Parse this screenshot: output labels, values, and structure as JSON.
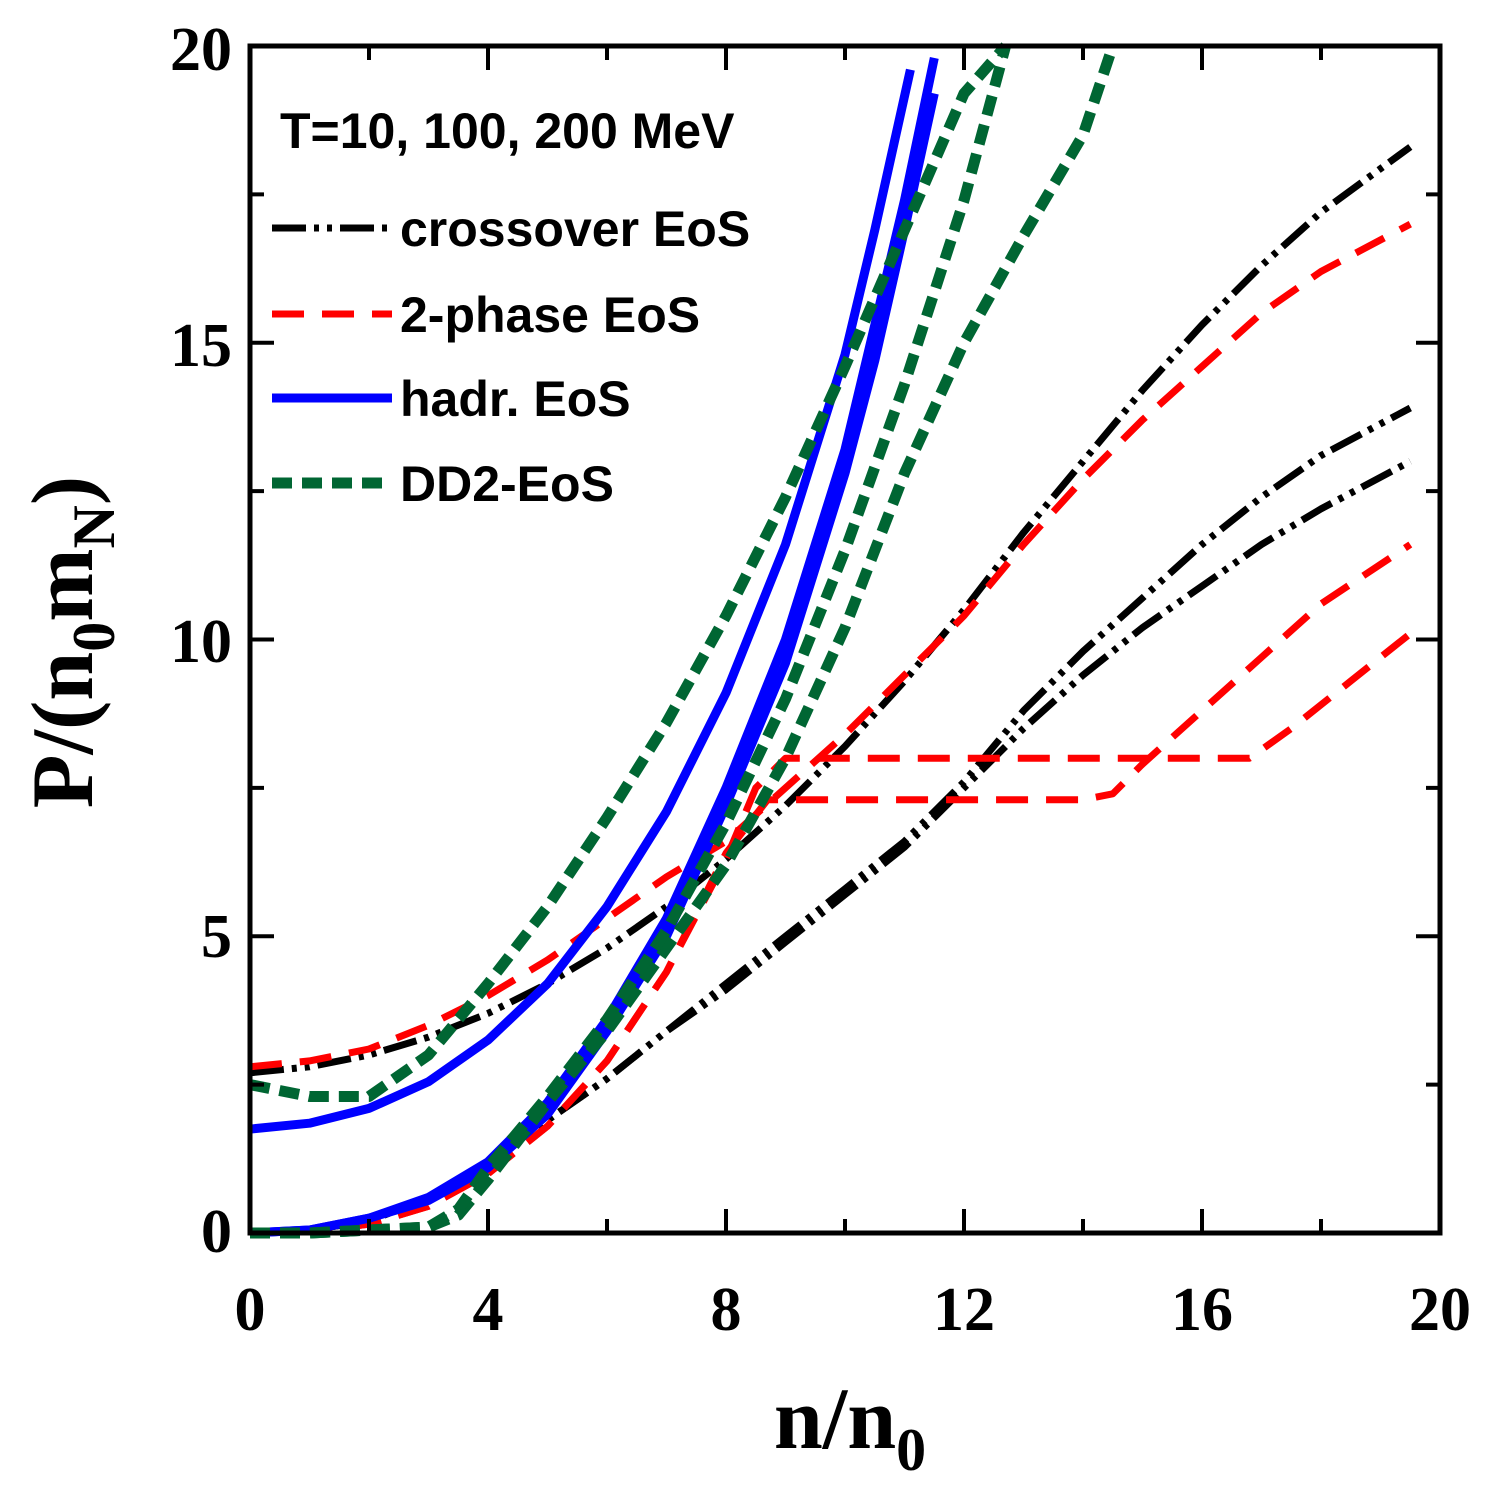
{
  "chart_data": {
    "type": "line",
    "title": "",
    "annotation": "T=10, 100, 200 MeV",
    "xlabel": {
      "main": "n/n",
      "sub": "0"
    },
    "ylabel": {
      "p1": "P/(n",
      "s1": "0",
      "p2": "m",
      "s2": "N",
      "p3": ")"
    },
    "xlim": [
      0,
      20
    ],
    "ylim": [
      0,
      20
    ],
    "xticks": [
      0,
      4,
      8,
      12,
      16,
      20
    ],
    "yticks": [
      0,
      5,
      10,
      15,
      20
    ],
    "xtick_labels": [
      "0",
      "4",
      "8",
      "12",
      "16",
      "20"
    ],
    "ytick_labels": [
      "0",
      "5",
      "10",
      "15",
      "20"
    ],
    "x_minor_step": 2,
    "y_minor_step": 2.5,
    "legend_position": "top-left",
    "series": [
      {
        "name": "crossover EoS",
        "legend_label": "crossover EoS",
        "color": "#000000",
        "style": "dash-dot-dot",
        "x": [
          0,
          1,
          2,
          3,
          4,
          5,
          6,
          7,
          8,
          9,
          10,
          11,
          12,
          13,
          14,
          15,
          16,
          17,
          18,
          19.5
        ],
        "y": [
          0,
          0.05,
          0.2,
          0.6,
          1.2,
          1.9,
          2.6,
          3.4,
          4.1,
          4.9,
          5.7,
          6.5,
          7.5,
          8.5,
          9.4,
          10.2,
          10.9,
          11.6,
          12.2,
          13.0
        ]
      },
      {
        "name": "crossover EoS",
        "color": "#000000",
        "style": "dash-dot-dot",
        "x": [
          0,
          1,
          2,
          3,
          4,
          5,
          6,
          7,
          8,
          9,
          10,
          11,
          12,
          13,
          14,
          15,
          16,
          17,
          18,
          19.5
        ],
        "y": [
          0,
          0.05,
          0.2,
          0.6,
          1.2,
          1.9,
          2.6,
          3.4,
          4.2,
          5.0,
          5.8,
          6.6,
          7.6,
          8.8,
          9.8,
          10.7,
          11.6,
          12.4,
          13.1,
          13.9
        ]
      },
      {
        "name": "crossover EoS",
        "color": "#000000",
        "style": "dash-dot-dot",
        "x": [
          0,
          1,
          2,
          3,
          4,
          5,
          6,
          7,
          8,
          9,
          10,
          11,
          12,
          13,
          14,
          15,
          16,
          17,
          18,
          19.5
        ],
        "y": [
          2.7,
          2.8,
          3.0,
          3.3,
          3.7,
          4.2,
          4.8,
          5.5,
          6.3,
          7.2,
          8.2,
          9.3,
          10.5,
          11.8,
          13.0,
          14.2,
          15.3,
          16.3,
          17.2,
          18.3
        ]
      },
      {
        "name": "2-phase EoS",
        "color": "#ff0000",
        "style": "dash",
        "x": [
          0,
          1,
          2,
          3,
          4,
          5,
          6,
          7,
          8,
          8.7,
          9,
          10,
          11,
          12,
          13,
          14,
          14.5,
          15,
          16,
          17,
          18,
          19.5
        ],
        "y": [
          0,
          0.02,
          0.15,
          0.45,
          1.0,
          1.8,
          2.9,
          4.4,
          6.4,
          7.3,
          7.3,
          7.3,
          7.3,
          7.3,
          7.3,
          7.3,
          7.4,
          7.9,
          8.8,
          9.7,
          10.6,
          11.6
        ]
      },
      {
        "name": "2-phase EoS",
        "color": "#ff0000",
        "style": "dash",
        "x": [
          0,
          1,
          2,
          3,
          4,
          5,
          6,
          7,
          8,
          8.5,
          9,
          10,
          11,
          12,
          13,
          14,
          15,
          16,
          16.8,
          17.5,
          18.5,
          19.5
        ],
        "y": [
          0,
          0.02,
          0.15,
          0.45,
          1.0,
          1.8,
          2.9,
          4.4,
          6.3,
          7.5,
          8.0,
          8.0,
          8.0,
          8.0,
          8.0,
          8.0,
          8.0,
          8.0,
          8.0,
          8.5,
          9.3,
          10.1
        ]
      },
      {
        "name": "2-phase EoS",
        "legend_label": "2-phase EoS",
        "color": "#ff0000",
        "style": "dash",
        "x": [
          0,
          1,
          2,
          3,
          4,
          5,
          6,
          7,
          8,
          9,
          10,
          11,
          12,
          13,
          14,
          15,
          16,
          17,
          18,
          19.5
        ],
        "y": [
          2.8,
          2.9,
          3.1,
          3.5,
          4.0,
          4.6,
          5.3,
          6.0,
          6.6,
          7.5,
          8.4,
          9.4,
          10.4,
          11.6,
          12.7,
          13.7,
          14.6,
          15.5,
          16.2,
          17.0
        ]
      },
      {
        "name": "hadr. EoS",
        "color": "#0000ff",
        "style": "solid",
        "x": [
          0,
          1,
          2,
          3,
          4,
          5,
          6,
          7,
          8,
          9,
          10,
          10.5,
          11,
          11.5
        ],
        "y": [
          0,
          0.05,
          0.25,
          0.6,
          1.2,
          2.2,
          3.6,
          5.3,
          7.5,
          10.0,
          13.2,
          15.3,
          17.4,
          19.8
        ]
      },
      {
        "name": "hadr. EoS",
        "color": "#0000ff",
        "style": "solid",
        "x": [
          0,
          1,
          2,
          3,
          4,
          5,
          6,
          7,
          8,
          9,
          10,
          10.5,
          11,
          11.5
        ],
        "y": [
          0,
          0.05,
          0.25,
          0.55,
          1.1,
          2.0,
          3.4,
          5.0,
          7.2,
          9.6,
          12.8,
          14.7,
          16.9,
          19.2
        ]
      },
      {
        "name": "hadr. EoS",
        "legend_label": "hadr. EoS",
        "color": "#0000ff",
        "style": "solid",
        "x": [
          0,
          1,
          2,
          3,
          4,
          5,
          6,
          7,
          8,
          9,
          10,
          10.5,
          11.1
        ],
        "y": [
          1.75,
          1.85,
          2.1,
          2.55,
          3.25,
          4.2,
          5.5,
          7.1,
          9.1,
          11.6,
          14.8,
          16.9,
          19.6
        ]
      },
      {
        "name": "DD2-EoS",
        "color": "#006633",
        "style": "dash-thick",
        "x": [
          0,
          1,
          2,
          3,
          3.5,
          4,
          5,
          6,
          7,
          8,
          9,
          10,
          11,
          12,
          13,
          14,
          14.5
        ],
        "y": [
          0,
          0.0,
          0.05,
          0.1,
          0.3,
          0.9,
          2.2,
          3.4,
          4.8,
          6.2,
          8.0,
          10.2,
          12.8,
          15.0,
          16.8,
          18.5,
          20.0
        ]
      },
      {
        "name": "DD2-EoS",
        "color": "#006633",
        "style": "dash-thick",
        "x": [
          0,
          1,
          2,
          3,
          3.5,
          4,
          5,
          6,
          7,
          8,
          9,
          10,
          11,
          12,
          12.7
        ],
        "y": [
          0,
          0.0,
          0.05,
          0.1,
          0.4,
          1.1,
          2.3,
          3.6,
          5.1,
          6.9,
          9.0,
          11.5,
          14.3,
          17.4,
          20.0
        ]
      },
      {
        "name": "DD2-EoS",
        "legend_label": "DD2-EoS",
        "color": "#006633",
        "style": "dash-thick",
        "x": [
          0,
          1,
          2,
          3,
          4,
          5,
          6,
          7,
          8,
          9,
          10,
          11,
          12,
          12.7
        ],
        "y": [
          2.5,
          2.3,
          2.3,
          3.0,
          4.2,
          5.5,
          7.0,
          8.6,
          10.4,
          12.4,
          14.6,
          16.9,
          19.2,
          20.0
        ]
      }
    ]
  }
}
